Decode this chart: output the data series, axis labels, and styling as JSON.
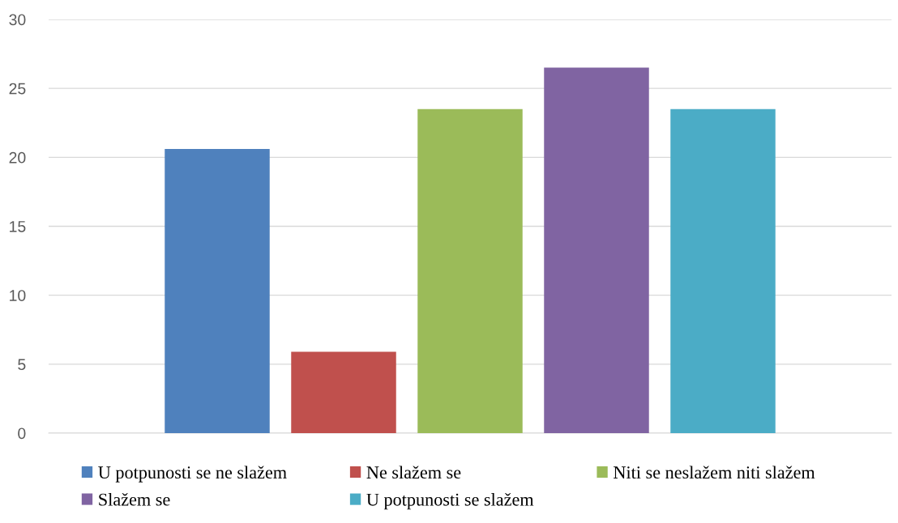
{
  "chart_data": {
    "type": "bar",
    "categories": [
      null
    ],
    "series": [
      {
        "name": "U potpunosti se ne slažem",
        "color": "#4f81bd",
        "values": [
          20.6
        ]
      },
      {
        "name": "Ne slažem se",
        "color": "#c0504d",
        "values": [
          5.9
        ]
      },
      {
        "name": "Niti se neslažem niti slažem",
        "color": "#9bbb59",
        "values": [
          23.5
        ]
      },
      {
        "name": "Slažem se",
        "color": "#8064a2",
        "values": [
          26.5
        ]
      },
      {
        "name": "U potpunosti se slažem",
        "color": "#4bacc6",
        "values": [
          23.5
        ]
      }
    ],
    "ylim": [
      0,
      30
    ],
    "yticks": [
      0,
      5,
      10,
      15,
      20,
      25,
      30
    ],
    "grid": "y",
    "legend": "bottom"
  }
}
